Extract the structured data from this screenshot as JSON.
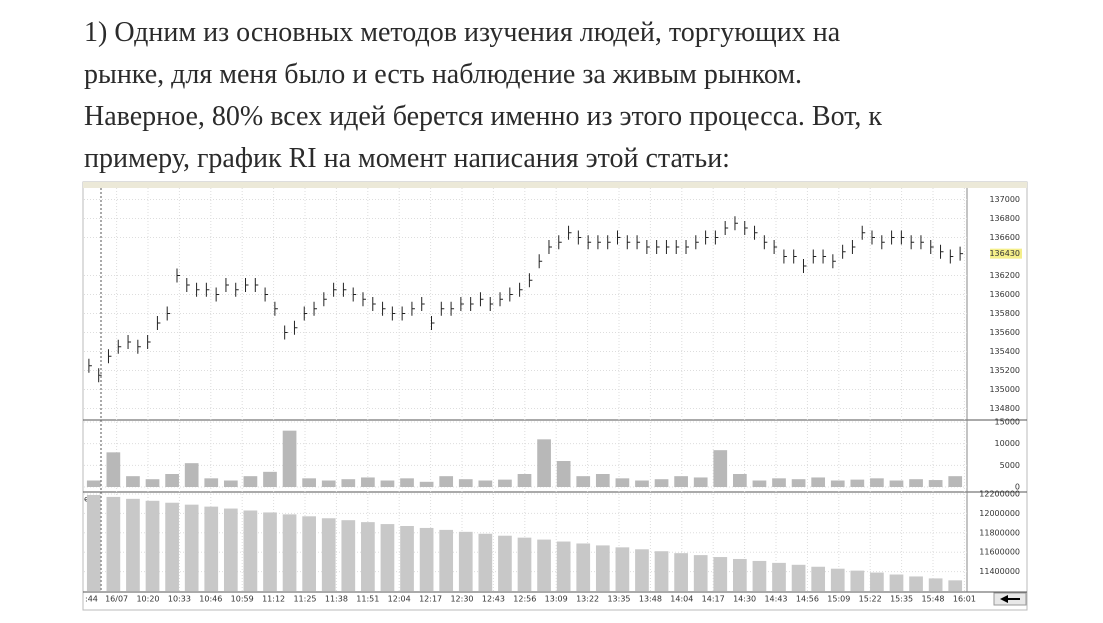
{
  "paragraph": {
    "lines": [
      "1) Одним из основных методов изучения людей, торгующих на",
      "рынке, для меня было и есть наблюдение за живым рынком.",
      "Наверное, 80% всех идей берется именно из этого процесса. Вот, к",
      "примеру, график RI на момент написания этой статьи:"
    ]
  },
  "time_axis": {
    "labels": [
      ":44",
      "16/07",
      "10:20",
      "10:33",
      "10:46",
      "10:59",
      "11:12",
      "11:25",
      "11:38",
      "11:51",
      "12:04",
      "12:17",
      "12:30",
      "12:43",
      "12:56",
      "13:09",
      "13:22",
      "13:35",
      "13:48",
      "14:04",
      "14:17",
      "14:30",
      "14:43",
      "14:56",
      "15:09",
      "15:22",
      "15:35",
      "15:48",
      "16:01"
    ]
  },
  "chart_data": [
    {
      "type": "ohlc",
      "color": "#222222",
      "last_price": 136430,
      "ylim": [
        134700,
        137100
      ],
      "yticks": [
        137000,
        136800,
        136600,
        136200,
        136000,
        135800,
        135600,
        135400,
        135200,
        135000,
        134800
      ],
      "values": [
        135250,
        135150,
        135350,
        135450,
        135500,
        135450,
        135500,
        135700,
        135800,
        136200,
        136100,
        136050,
        136050,
        136000,
        136100,
        136050,
        136100,
        136100,
        136000,
        135850,
        135600,
        135650,
        135800,
        135850,
        135950,
        136050,
        136050,
        136000,
        135950,
        135900,
        135850,
        135800,
        135800,
        135850,
        135900,
        135700,
        135850,
        135850,
        135900,
        135900,
        135950,
        135900,
        135950,
        136000,
        136050,
        136150,
        136350,
        136500,
        136550,
        136650,
        136600,
        136550,
        136550,
        136550,
        136600,
        136550,
        136550,
        136500,
        136500,
        136500,
        136500,
        136500,
        136550,
        136600,
        136600,
        136700,
        136750,
        136700,
        136650,
        136550,
        136500,
        136400,
        136400,
        136300,
        136400,
        136400,
        136350,
        136450,
        136500,
        136650,
        136600,
        136550,
        136600,
        136600,
        136550,
        136550,
        136500,
        136450,
        136400,
        136430
      ]
    },
    {
      "type": "bar",
      "color": "#b8b8b8",
      "ylim": [
        0,
        15000
      ],
      "yticks": [
        15000,
        10000,
        5000,
        0
      ],
      "values": [
        1500,
        8000,
        2500,
        1800,
        3000,
        5500,
        2000,
        1500,
        2500,
        3500,
        13000,
        2000,
        1500,
        1800,
        2200,
        1500,
        2000,
        1200,
        2500,
        1800,
        1500,
        1700,
        3000,
        11000,
        6000,
        2500,
        3000,
        2000,
        1500,
        1800,
        2500,
        2200,
        8500,
        3000,
        1500,
        2000,
        1800,
        2200,
        1500,
        1700,
        2000,
        1500,
        1800,
        1600,
        2500
      ]
    },
    {
      "type": "bar",
      "color": "#c8c8c8",
      "label": "est",
      "ylim": [
        11200000,
        12200000
      ],
      "yticks": [
        12200000,
        12000000,
        11800000,
        11600000,
        11400000
      ],
      "values": [
        12190000,
        12170000,
        12150000,
        12130000,
        12110000,
        12090000,
        12070000,
        12050000,
        12030000,
        12010000,
        11990000,
        11970000,
        11950000,
        11930000,
        11910000,
        11890000,
        11870000,
        11850000,
        11830000,
        11810000,
        11790000,
        11770000,
        11750000,
        11730000,
        11710000,
        11690000,
        11670000,
        11650000,
        11630000,
        11610000,
        11590000,
        11570000,
        11550000,
        11530000,
        11510000,
        11490000,
        11470000,
        11450000,
        11430000,
        11410000,
        11390000,
        11370000,
        11350000,
        11330000,
        11310000
      ]
    }
  ]
}
